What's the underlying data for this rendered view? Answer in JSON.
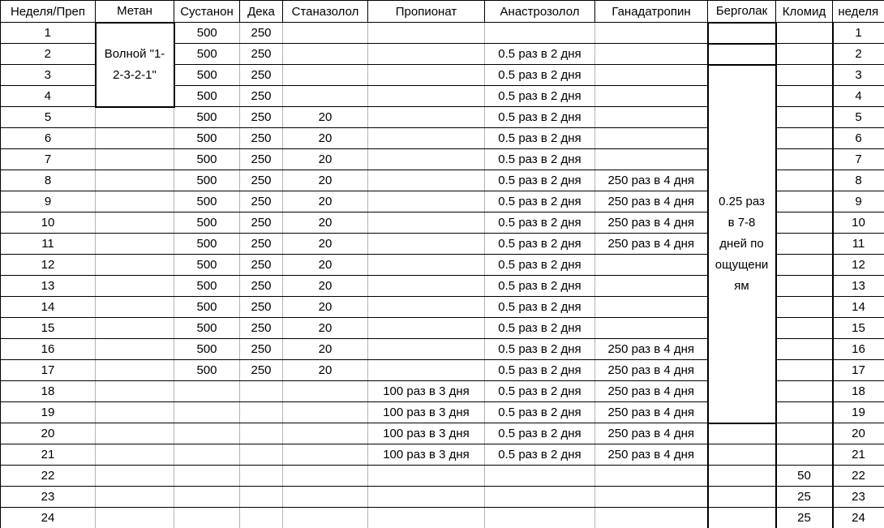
{
  "table": {
    "columns": [
      {
        "id": "week",
        "label": "Неделя/Преп"
      },
      {
        "id": "metan",
        "label": "Метан"
      },
      {
        "id": "sustanon",
        "label": "Сустанон"
      },
      {
        "id": "deka",
        "label": "Дека"
      },
      {
        "id": "stanazolol",
        "label": "Станазолол"
      },
      {
        "id": "propionat",
        "label": "Пропионат"
      },
      {
        "id": "anastrozolol",
        "label": "Анастрозолол"
      },
      {
        "id": "ganadatropin",
        "label": "Ганадатропин"
      },
      {
        "id": "bergolak",
        "label": "Берголак"
      },
      {
        "id": "klomid",
        "label": "Кломид"
      },
      {
        "id": "week_right",
        "label": "неделя"
      }
    ],
    "merged_cells": {
      "metan": {
        "text": "Волной \"1-2-3-2-1\"",
        "row_start": 1,
        "row_end": 4
      },
      "bergolak": {
        "text": "0.25 раз в 7-8 дней по ощущениям",
        "row_start": 3,
        "row_end": 19
      }
    },
    "rows": [
      {
        "week": "1",
        "metan": "",
        "sustanon": "500",
        "deka": "250",
        "stanazolol": "",
        "propionat": "",
        "anastrozolol": "",
        "ganadatropin": "",
        "bergolak": "",
        "klomid": "",
        "week_right": "1"
      },
      {
        "week": "2",
        "metan": "",
        "sustanon": "500",
        "deka": "250",
        "stanazolol": "",
        "propionat": "",
        "anastrozolol": "0.5 раз в 2 дня",
        "ganadatropin": "",
        "bergolak": "",
        "klomid": "",
        "week_right": "2"
      },
      {
        "week": "3",
        "metan": "",
        "sustanon": "500",
        "deka": "250",
        "stanazolol": "",
        "propionat": "",
        "anastrozolol": "0.5 раз в 2 дня",
        "ganadatropin": "",
        "bergolak": "",
        "klomid": "",
        "week_right": "3"
      },
      {
        "week": "4",
        "metan": "",
        "sustanon": "500",
        "deka": "250",
        "stanazolol": "",
        "propionat": "",
        "anastrozolol": "0.5 раз в 2 дня",
        "ganadatropin": "",
        "bergolak": "",
        "klomid": "",
        "week_right": "4"
      },
      {
        "week": "5",
        "metan": "",
        "sustanon": "500",
        "deka": "250",
        "stanazolol": "20",
        "propionat": "",
        "anastrozolol": "0.5 раз в 2 дня",
        "ganadatropin": "",
        "bergolak": "",
        "klomid": "",
        "week_right": "5"
      },
      {
        "week": "6",
        "metan": "",
        "sustanon": "500",
        "deka": "250",
        "stanazolol": "20",
        "propionat": "",
        "anastrozolol": "0.5 раз в 2 дня",
        "ganadatropin": "",
        "bergolak": "",
        "klomid": "",
        "week_right": "6"
      },
      {
        "week": "7",
        "metan": "",
        "sustanon": "500",
        "deka": "250",
        "stanazolol": "20",
        "propionat": "",
        "anastrozolol": "0.5 раз в 2 дня",
        "ganadatropin": "",
        "bergolak": "",
        "klomid": "",
        "week_right": "7"
      },
      {
        "week": "8",
        "metan": "",
        "sustanon": "500",
        "deka": "250",
        "stanazolol": "20",
        "propionat": "",
        "anastrozolol": "0.5 раз в 2 дня",
        "ganadatropin": "250 раз в  4 дня",
        "bergolak": "",
        "klomid": "",
        "week_right": "8"
      },
      {
        "week": "9",
        "metan": "",
        "sustanon": "500",
        "deka": "250",
        "stanazolol": "20",
        "propionat": "",
        "anastrozolol": "0.5 раз в 2 дня",
        "ganadatropin": "250 раз в  4 дня",
        "bergolak": "",
        "klomid": "",
        "week_right": "9"
      },
      {
        "week": "10",
        "metan": "",
        "sustanon": "500",
        "deka": "250",
        "stanazolol": "20",
        "propionat": "",
        "anastrozolol": "0.5 раз в 2 дня",
        "ganadatropin": "250 раз в  4 дня",
        "bergolak": "",
        "klomid": "",
        "week_right": "10"
      },
      {
        "week": "11",
        "metan": "",
        "sustanon": "500",
        "deka": "250",
        "stanazolol": "20",
        "propionat": "",
        "anastrozolol": "0.5 раз в 2 дня",
        "ganadatropin": "250 раз в  4 дня",
        "bergolak": "",
        "klomid": "",
        "week_right": "11"
      },
      {
        "week": "12",
        "metan": "",
        "sustanon": "500",
        "deka": "250",
        "stanazolol": "20",
        "propionat": "",
        "anastrozolol": "0.5 раз в 2 дня",
        "ganadatropin": "",
        "bergolak": "",
        "klomid": "",
        "week_right": "12"
      },
      {
        "week": "13",
        "metan": "",
        "sustanon": "500",
        "deka": "250",
        "stanazolol": "20",
        "propionat": "",
        "anastrozolol": "0.5 раз в 2 дня",
        "ganadatropin": "",
        "bergolak": "",
        "klomid": "",
        "week_right": "13"
      },
      {
        "week": "14",
        "metan": "",
        "sustanon": "500",
        "deka": "250",
        "stanazolol": "20",
        "propionat": "",
        "anastrozolol": "0.5 раз в 2 дня",
        "ganadatropin": "",
        "bergolak": "",
        "klomid": "",
        "week_right": "14"
      },
      {
        "week": "15",
        "metan": "",
        "sustanon": "500",
        "deka": "250",
        "stanazolol": "20",
        "propionat": "",
        "anastrozolol": "0.5 раз в 2 дня",
        "ganadatropin": "",
        "bergolak": "",
        "klomid": "",
        "week_right": "15"
      },
      {
        "week": "16",
        "metan": "",
        "sustanon": "500",
        "deka": "250",
        "stanazolol": "20",
        "propionat": "",
        "anastrozolol": "0.5 раз в 2 дня",
        "ganadatropin": "250 раз в  4 дня",
        "bergolak": "",
        "klomid": "",
        "week_right": "16"
      },
      {
        "week": "17",
        "metan": "",
        "sustanon": "500",
        "deka": "250",
        "stanazolol": "20",
        "propionat": "",
        "anastrozolol": "0.5 раз в 2 дня",
        "ganadatropin": "250 раз в  4 дня",
        "bergolak": "",
        "klomid": "",
        "week_right": "17"
      },
      {
        "week": "18",
        "metan": "",
        "sustanon": "",
        "deka": "",
        "stanazolol": "",
        "propionat": "100 раз в 3 дня",
        "anastrozolol": "0.5 раз в 2 дня",
        "ganadatropin": "250 раз в  4 дня",
        "bergolak": "",
        "klomid": "",
        "week_right": "18"
      },
      {
        "week": "19",
        "metan": "",
        "sustanon": "",
        "deka": "",
        "stanazolol": "",
        "propionat": "100 раз в 3 дня",
        "anastrozolol": "0.5 раз в 2 дня",
        "ganadatropin": "250 раз в  4 дня",
        "bergolak": "",
        "klomid": "",
        "week_right": "19"
      },
      {
        "week": "20",
        "metan": "",
        "sustanon": "",
        "deka": "",
        "stanazolol": "",
        "propionat": "100 раз в 3 дня",
        "anastrozolol": "0.5 раз в 2 дня",
        "ganadatropin": "250 раз в  4 дня",
        "bergolak": "",
        "klomid": "",
        "week_right": "20"
      },
      {
        "week": "21",
        "metan": "",
        "sustanon": "",
        "deka": "",
        "stanazolol": "",
        "propionat": "100 раз в 3 дня",
        "anastrozolol": "0.5 раз в 2 дня",
        "ganadatropin": "250 раз в  4 дня",
        "bergolak": "",
        "klomid": "",
        "week_right": "21"
      },
      {
        "week": "22",
        "metan": "",
        "sustanon": "",
        "deka": "",
        "stanazolol": "",
        "propionat": "",
        "anastrozolol": "",
        "ganadatropin": "",
        "bergolak": "",
        "klomid": "50",
        "week_right": "22"
      },
      {
        "week": "23",
        "metan": "",
        "sustanon": "",
        "deka": "",
        "stanazolol": "",
        "propionat": "",
        "anastrozolol": "",
        "ganadatropin": "",
        "bergolak": "",
        "klomid": "25",
        "week_right": "23"
      },
      {
        "week": "24",
        "metan": "",
        "sustanon": "",
        "deka": "",
        "stanazolol": "",
        "propionat": "",
        "anastrozolol": "",
        "ganadatropin": "",
        "bergolak": "",
        "klomid": "25",
        "week_right": "24"
      }
    ]
  },
  "colors": {
    "background": "#ffffff",
    "text": "#000000",
    "grid_line_strong": "#000000",
    "grid_line_light": "#b3b3b3"
  }
}
